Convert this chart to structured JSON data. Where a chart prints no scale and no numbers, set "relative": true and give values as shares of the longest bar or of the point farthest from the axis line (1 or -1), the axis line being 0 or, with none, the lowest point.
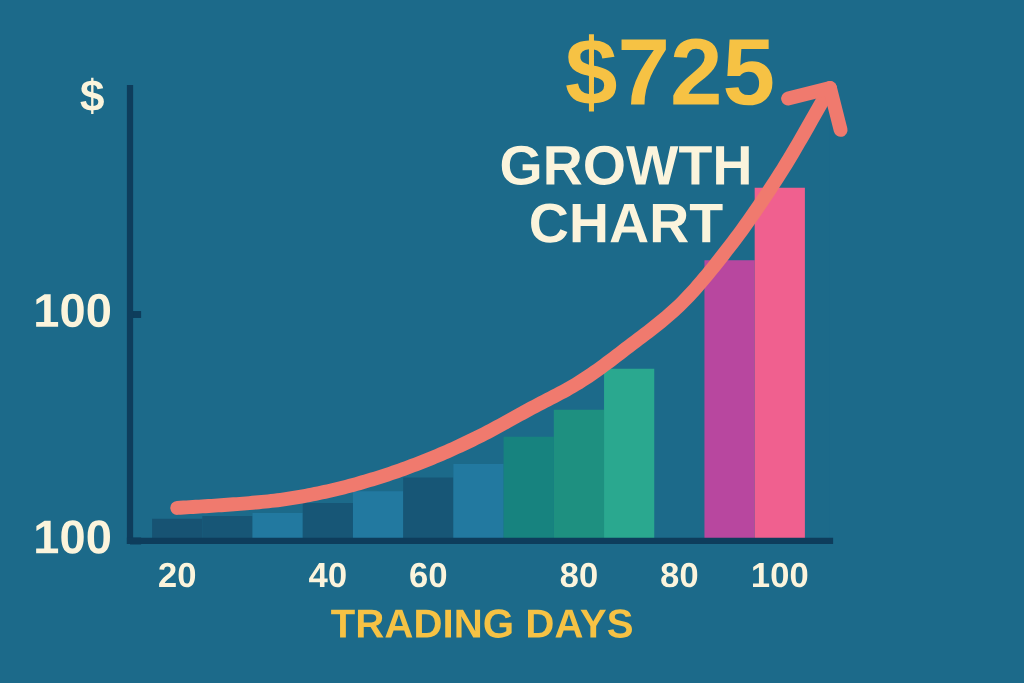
{
  "chart_data": {
    "type": "bar",
    "title": "$725",
    "subtitle": "GROWTH\nCHART",
    "xlabel": "TRADING DAYS",
    "ylabel": "$",
    "relative": true,
    "categories": [
      "20",
      null,
      null,
      "40",
      null,
      "60",
      null,
      null,
      "80",
      null,
      "80",
      null,
      "100",
      null
    ],
    "annotations": [
      "100",
      "100"
    ],
    "series": [
      {
        "colors": [
          "#175373",
          "#175676",
          "#2279a0",
          "#175676",
          "#2279a0",
          "#175676",
          "#2279a0",
          "#17837f",
          "#1e9080",
          "#2aa88f",
          null,
          "#b8479f",
          "#f0608f",
          null
        ],
        "values": [
          0.049,
          0.055,
          0.062,
          0.084,
          0.11,
          0.14,
          0.17,
          0.23,
          0.29,
          0.38,
          null,
          0.62,
          0.78,
          null
        ]
      },
      {
        "type": "line",
        "color": "#f07a6e",
        "marker": "none",
        "line_style": "solid",
        "values": [
          0.073,
          0.08,
          0.09,
          0.11,
          0.14,
          0.18,
          0.23,
          0.29,
          0.35,
          0.43,
          0.52,
          0.65,
          0.81,
          1.0
        ]
      }
    ]
  }
}
